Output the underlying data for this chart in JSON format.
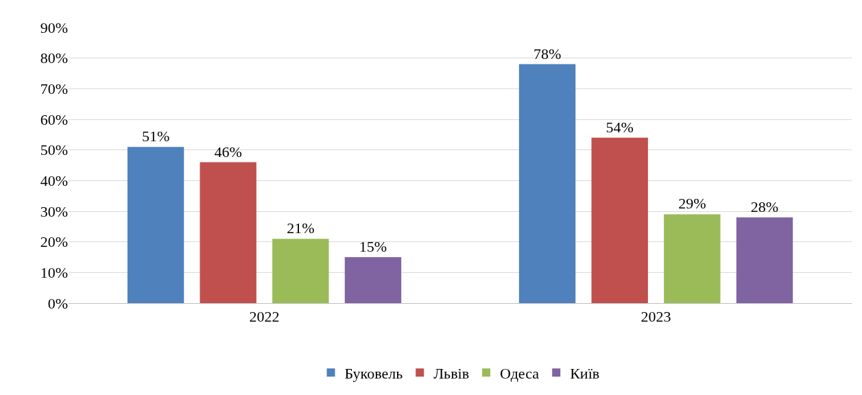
{
  "chart_data": {
    "type": "bar",
    "categories": [
      "2022",
      "2023"
    ],
    "series": [
      {
        "name": "Буковель",
        "color": "#4f81bd",
        "values": [
          51,
          78
        ],
        "value_labels": [
          "51%",
          "78%"
        ]
      },
      {
        "name": "Львів",
        "color": "#c0504d",
        "values": [
          46,
          54
        ],
        "value_labels": [
          "46%",
          "54%"
        ]
      },
      {
        "name": "Одеса",
        "color": "#9bbb59",
        "values": [
          21,
          29
        ],
        "value_labels": [
          "21%",
          "29%"
        ]
      },
      {
        "name": "Київ",
        "color": "#8064a2",
        "values": [
          15,
          28
        ],
        "value_labels": [
          "15%",
          "28%"
        ]
      }
    ],
    "ylim": [
      0,
      90
    ],
    "yticks": [
      {
        "value": 0,
        "label": "0%"
      },
      {
        "value": 10,
        "label": "10%"
      },
      {
        "value": 20,
        "label": "20%"
      },
      {
        "value": 30,
        "label": "30%"
      },
      {
        "value": 40,
        "label": "40%"
      },
      {
        "value": 50,
        "label": "50%"
      },
      {
        "value": 60,
        "label": "60%"
      },
      {
        "value": 70,
        "label": "70%"
      },
      {
        "value": 80,
        "label": "80%"
      },
      {
        "value": 90,
        "label": "90%"
      }
    ],
    "grid": "y",
    "legend": "bottom"
  }
}
